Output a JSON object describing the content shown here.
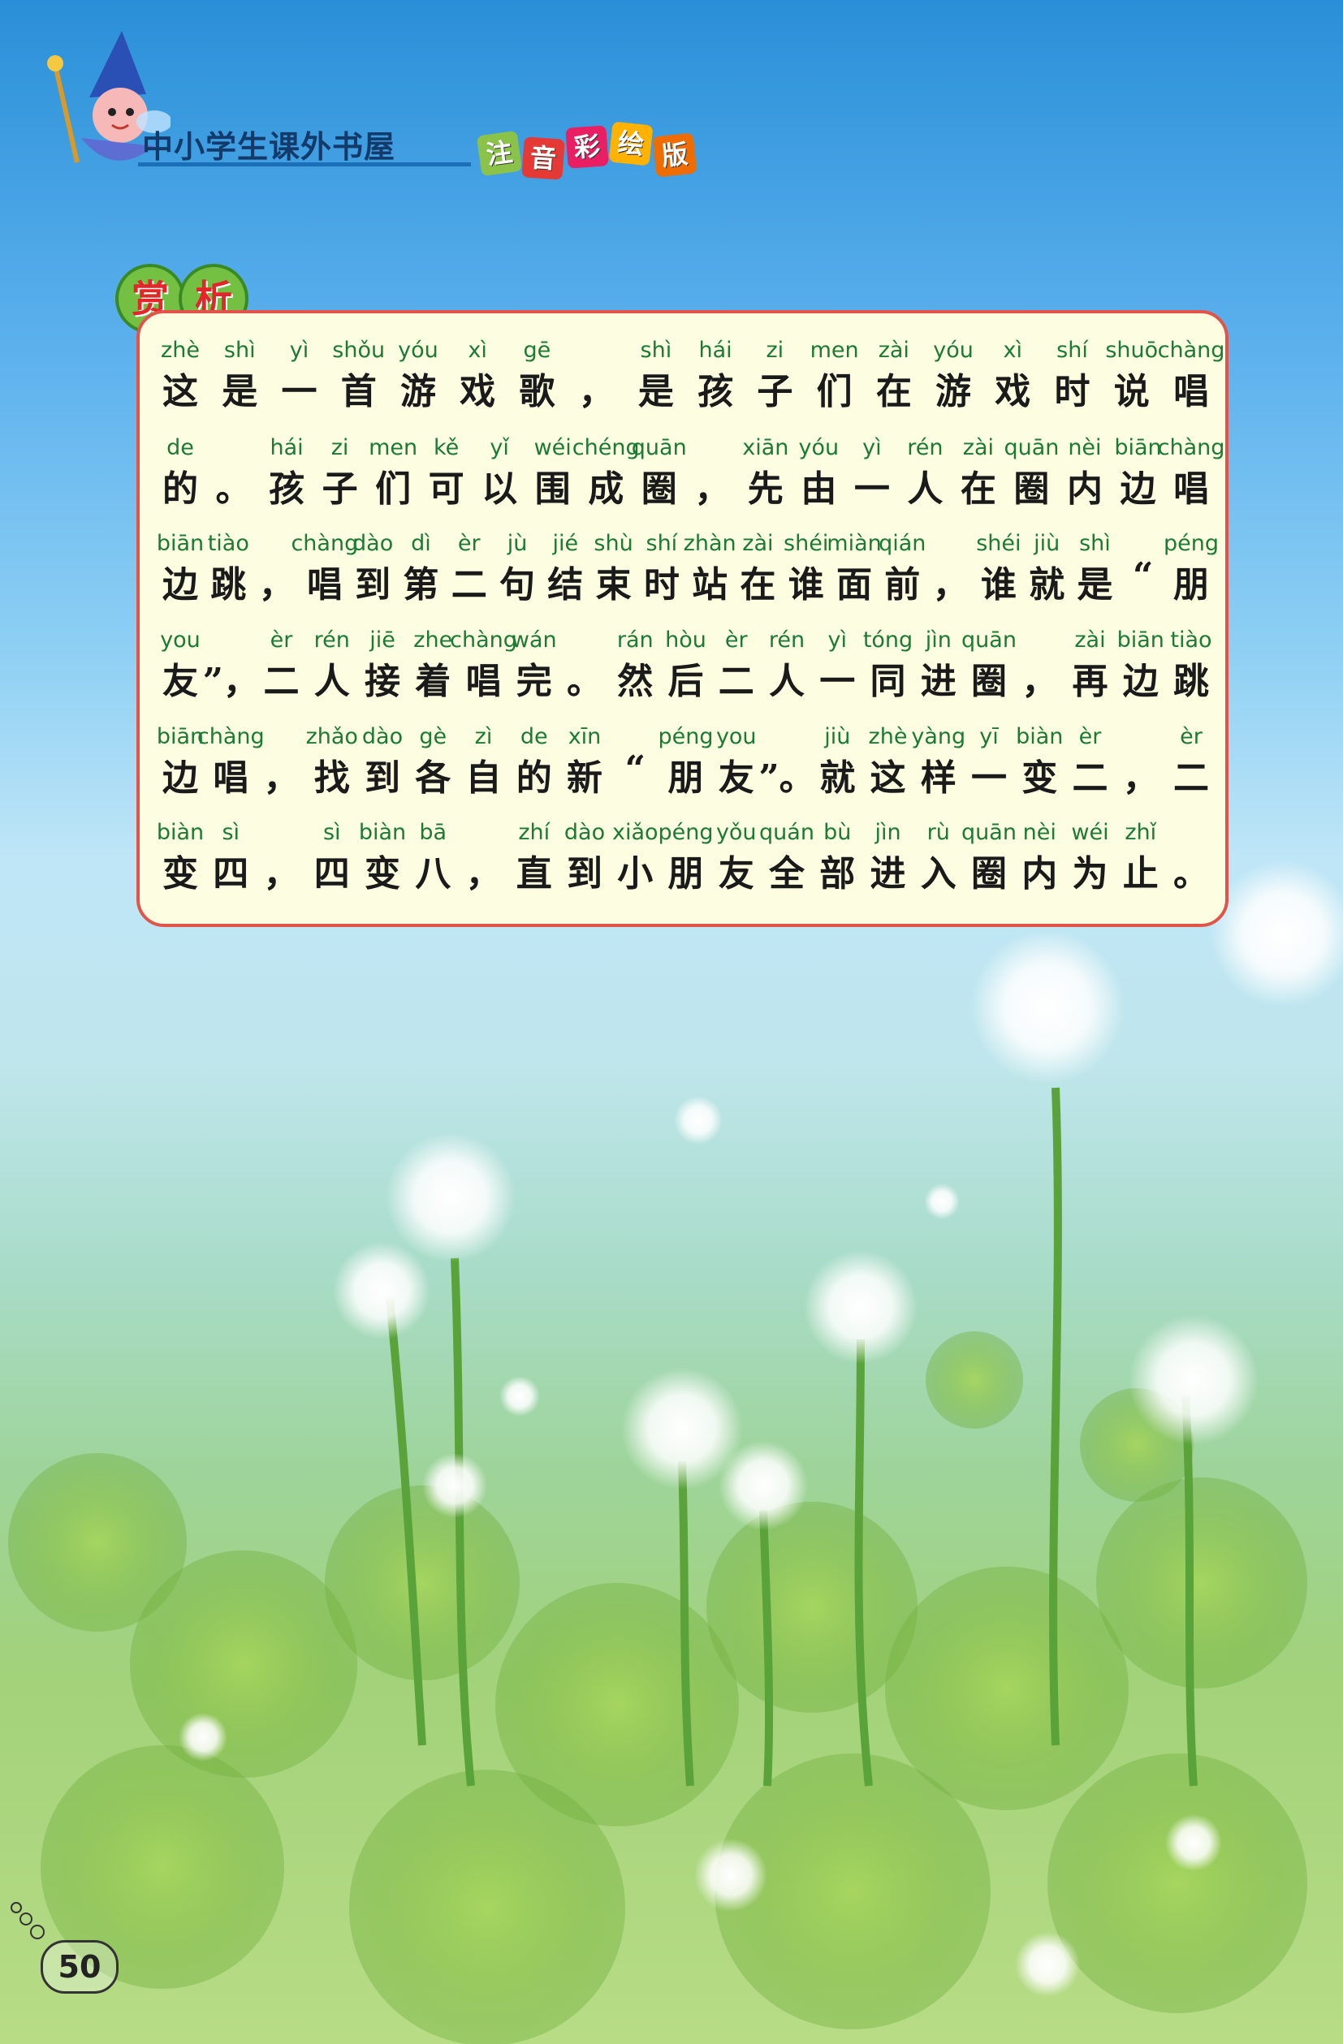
{
  "header": {
    "series_title": "中小学生课外书屋",
    "edition_chars": [
      "注",
      "音",
      "彩",
      "绘",
      "版"
    ]
  },
  "section_badge": [
    "赏",
    "析"
  ],
  "lines": [
    [
      [
        "zhè",
        "这"
      ],
      [
        "shì",
        "是"
      ],
      [
        "yì",
        "一"
      ],
      [
        "shǒu",
        "首"
      ],
      [
        "yóu",
        "游"
      ],
      [
        "xì",
        "戏"
      ],
      [
        "gē",
        "歌"
      ],
      [
        "",
        "，"
      ],
      [
        "shì",
        "是"
      ],
      [
        "hái",
        "孩"
      ],
      [
        "zi",
        "子"
      ],
      [
        "men",
        "们"
      ],
      [
        "zài",
        "在"
      ],
      [
        "yóu",
        "游"
      ],
      [
        "xì",
        "戏"
      ],
      [
        "shí",
        "时"
      ],
      [
        "shuō",
        "说"
      ],
      [
        "chàng",
        "唱"
      ]
    ],
    [
      [
        "de",
        "的"
      ],
      [
        "",
        "。"
      ],
      [
        "hái",
        "孩"
      ],
      [
        "zi",
        "子"
      ],
      [
        "men",
        "们"
      ],
      [
        "kě",
        "可"
      ],
      [
        "yǐ",
        "以"
      ],
      [
        "wéi",
        "围"
      ],
      [
        "chéng",
        "成"
      ],
      [
        "quān",
        "圈"
      ],
      [
        "",
        "，"
      ],
      [
        "xiān",
        "先"
      ],
      [
        "yóu",
        "由"
      ],
      [
        "yì",
        "一"
      ],
      [
        "rén",
        "人"
      ],
      [
        "zài",
        "在"
      ],
      [
        "quān",
        "圈"
      ],
      [
        "nèi",
        "内"
      ],
      [
        "biān",
        "边"
      ],
      [
        "chàng",
        "唱"
      ]
    ],
    [
      [
        "biān",
        "边"
      ],
      [
        "tiào",
        "跳"
      ],
      [
        "",
        "，"
      ],
      [
        "chàng",
        "唱"
      ],
      [
        "dào",
        "到"
      ],
      [
        "dì",
        "第"
      ],
      [
        "èr",
        "二"
      ],
      [
        "jù",
        "句"
      ],
      [
        "jié",
        "结"
      ],
      [
        "shù",
        "束"
      ],
      [
        "shí",
        "时"
      ],
      [
        "zhàn",
        "站"
      ],
      [
        "zài",
        "在"
      ],
      [
        "shéi",
        "谁"
      ],
      [
        "miàn",
        "面"
      ],
      [
        "qián",
        "前"
      ],
      [
        "",
        "，"
      ],
      [
        "shéi",
        "谁"
      ],
      [
        "jiù",
        "就"
      ],
      [
        "shì",
        "是"
      ],
      [
        "",
        "“"
      ],
      [
        "péng",
        "朋"
      ]
    ],
    [
      [
        "you",
        "友"
      ],
      [
        "",
        "”，"
      ],
      [
        "èr",
        "二"
      ],
      [
        "rén",
        "人"
      ],
      [
        "jiē",
        "接"
      ],
      [
        "zhe",
        "着"
      ],
      [
        "chàng",
        "唱"
      ],
      [
        "wán",
        "完"
      ],
      [
        "",
        "。"
      ],
      [
        "rán",
        "然"
      ],
      [
        "hòu",
        "后"
      ],
      [
        "èr",
        "二"
      ],
      [
        "rén",
        "人"
      ],
      [
        "yì",
        "一"
      ],
      [
        "tóng",
        "同"
      ],
      [
        "jìn",
        "进"
      ],
      [
        "quān",
        "圈"
      ],
      [
        "",
        "，"
      ],
      [
        "zài",
        "再"
      ],
      [
        "biān",
        "边"
      ],
      [
        "tiào",
        "跳"
      ]
    ],
    [
      [
        "biān",
        "边"
      ],
      [
        "chàng",
        "唱"
      ],
      [
        "",
        "，"
      ],
      [
        "zhǎo",
        "找"
      ],
      [
        "dào",
        "到"
      ],
      [
        "gè",
        "各"
      ],
      [
        "zì",
        "自"
      ],
      [
        "de",
        "的"
      ],
      [
        "xīn",
        "新"
      ],
      [
        "",
        "“"
      ],
      [
        "péng",
        "朋"
      ],
      [
        "you",
        "友"
      ],
      [
        "",
        "”。"
      ],
      [
        "jiù",
        "就"
      ],
      [
        "zhè",
        "这"
      ],
      [
        "yàng",
        "样"
      ],
      [
        "yī",
        "一"
      ],
      [
        "biàn",
        "变"
      ],
      [
        "èr",
        "二"
      ],
      [
        "",
        "，"
      ],
      [
        "èr",
        "二"
      ]
    ],
    [
      [
        "biàn",
        "变"
      ],
      [
        "sì",
        "四"
      ],
      [
        "",
        "，"
      ],
      [
        "sì",
        "四"
      ],
      [
        "biàn",
        "变"
      ],
      [
        "bā",
        "八"
      ],
      [
        "",
        "，"
      ],
      [
        "zhí",
        "直"
      ],
      [
        "dào",
        "到"
      ],
      [
        "xiǎo",
        "小"
      ],
      [
        "péng",
        "朋"
      ],
      [
        "yǒu",
        "友"
      ],
      [
        "quán",
        "全"
      ],
      [
        "bù",
        "部"
      ],
      [
        "jìn",
        "进"
      ],
      [
        "rù",
        "入"
      ],
      [
        "quān",
        "圈"
      ],
      [
        "nèi",
        "内"
      ],
      [
        "wéi",
        "为"
      ],
      [
        "zhǐ",
        "止"
      ],
      [
        "",
        "。"
      ]
    ]
  ],
  "page_number": "50"
}
